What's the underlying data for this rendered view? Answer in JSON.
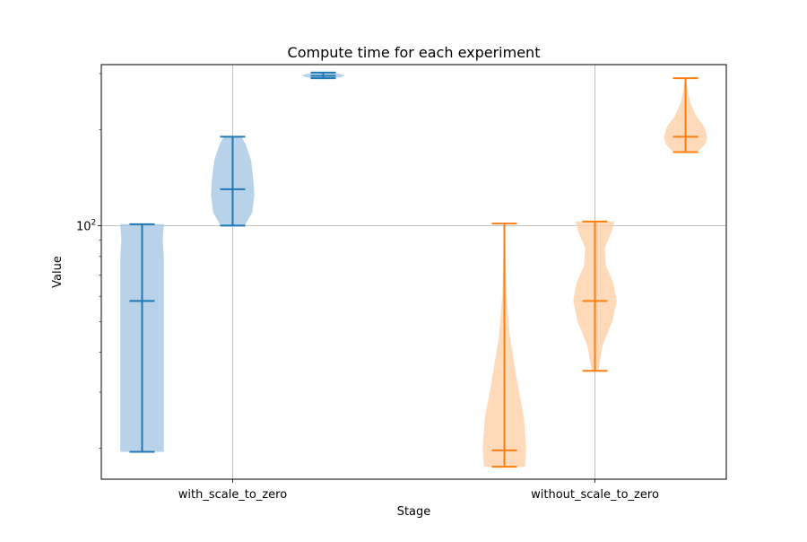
{
  "chart_data": {
    "type": "violin",
    "title": "Compute time for each experiment",
    "xlabel": "Stage",
    "ylabel": "Value",
    "yscale": "log",
    "ylim": [
      16.0,
      320.0
    ],
    "grid": true,
    "categories": [
      "with_scale_to_zero",
      "without_scale_to_zero"
    ],
    "y_tick_labels": [
      {
        "value": 100,
        "base": "10",
        "exp": "2"
      }
    ],
    "series": [
      {
        "color": "#1f77b4",
        "fill": "#a6c8e4",
        "violins": [
          {
            "x": 0.75,
            "min": 19.5,
            "max": 101,
            "median": 58,
            "width": 0.12,
            "profile": [
              [
                19.5,
                1.0
              ],
              [
                30,
                1.0
              ],
              [
                50,
                1.0
              ],
              [
                80,
                1.0
              ],
              [
                90,
                0.95
              ],
              [
                101,
                1.0
              ]
            ]
          },
          {
            "x": 1.0,
            "min": 100,
            "max": 190,
            "median": 130,
            "width": 0.12,
            "profile": [
              [
                100,
                0.55
              ],
              [
                110,
                0.9
              ],
              [
                125,
                1.0
              ],
              [
                140,
                0.95
              ],
              [
                160,
                0.85
              ],
              [
                180,
                0.6
              ],
              [
                190,
                0.4
              ]
            ]
          },
          {
            "x": 1.25,
            "min": 290,
            "max": 302,
            "median": 295,
            "width": 0.12,
            "profile": [
              [
                288,
                0.1
              ],
              [
                292,
                0.8
              ],
              [
                296,
                1.0
              ],
              [
                300,
                0.7
              ],
              [
                304,
                0.1
              ]
            ]
          }
        ]
      },
      {
        "color": "#ff7f0e",
        "fill": "#ffd1a9",
        "violins": [
          {
            "x": 1.75,
            "min": 17.5,
            "max": 101.5,
            "median": 19.7,
            "width": 0.12,
            "profile": [
              [
                17.5,
                0.95
              ],
              [
                20,
                1.0
              ],
              [
                25,
                0.9
              ],
              [
                32,
                0.6
              ],
              [
                45,
                0.25
              ],
              [
                60,
                0.1
              ],
              [
                101.5,
                0.02
              ]
            ]
          },
          {
            "x": 2.0,
            "min": 35,
            "max": 103,
            "median": 58,
            "width": 0.12,
            "profile": [
              [
                35,
                0.15
              ],
              [
                42,
                0.35
              ],
              [
                50,
                0.8
              ],
              [
                58,
                1.0
              ],
              [
                66,
                0.85
              ],
              [
                75,
                0.5
              ],
              [
                85,
                0.45
              ],
              [
                95,
                0.75
              ],
              [
                103,
                0.9
              ]
            ]
          },
          {
            "x": 2.25,
            "min": 170,
            "max": 290,
            "median": 190,
            "width": 0.12,
            "profile": [
              [
                170,
                0.55
              ],
              [
                180,
                0.9
              ],
              [
                190,
                1.0
              ],
              [
                205,
                0.85
              ],
              [
                220,
                0.5
              ],
              [
                240,
                0.25
              ],
              [
                260,
                0.12
              ],
              [
                290,
                0.02
              ]
            ]
          }
        ]
      }
    ]
  }
}
